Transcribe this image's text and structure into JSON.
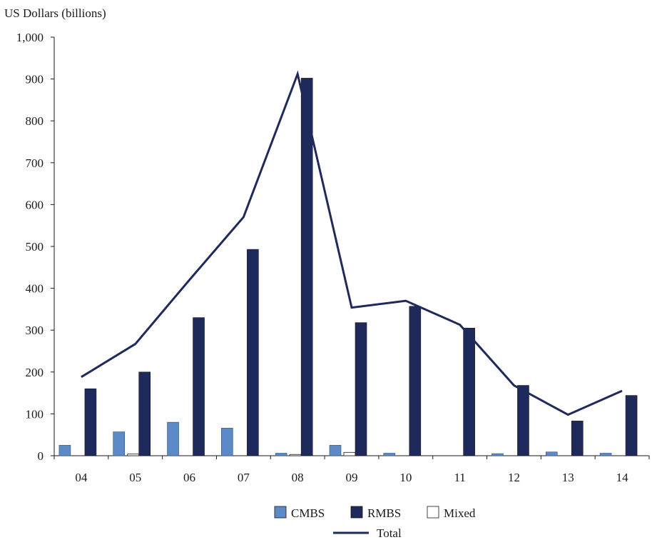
{
  "chart_data": {
    "type": "bar",
    "ylabel": "US Dollars (billions)",
    "ylim": [
      0,
      1000
    ],
    "yticks": [
      0,
      100,
      200,
      300,
      400,
      500,
      600,
      700,
      800,
      900,
      1000
    ],
    "ytick_labels": [
      "0",
      "100",
      "200",
      "300",
      "400",
      "500",
      "600",
      "700",
      "800",
      "900",
      "1,000"
    ],
    "categories": [
      "04",
      "05",
      "06",
      "07",
      "08",
      "09",
      "10",
      "11",
      "12",
      "13",
      "14"
    ],
    "series": [
      {
        "name": "CMBS",
        "kind": "bar",
        "color": "#5b8ac6",
        "values": [
          25,
          57,
          80,
          66,
          6,
          25,
          6,
          0,
          5,
          9,
          6
        ]
      },
      {
        "name": "Mixed",
        "kind": "bar",
        "color": "#ffffff",
        "values": [
          0,
          4,
          0,
          0,
          3,
          8,
          0,
          0,
          0,
          0,
          0
        ]
      },
      {
        "name": "RMBS",
        "kind": "bar",
        "color": "#1f2a5c",
        "values": [
          160,
          200,
          330,
          493,
          902,
          318,
          357,
          305,
          168,
          83,
          144
        ]
      },
      {
        "name": "Total",
        "kind": "line",
        "color": "#1f2a5c",
        "values": [
          188,
          267,
          420,
          570,
          912,
          354,
          370,
          313,
          168,
          98,
          155
        ]
      }
    ],
    "legend": {
      "placement": "bottom",
      "row1": [
        "CMBS",
        "RMBS",
        "Mixed"
      ],
      "row2": [
        "Total"
      ]
    },
    "grid": false
  }
}
